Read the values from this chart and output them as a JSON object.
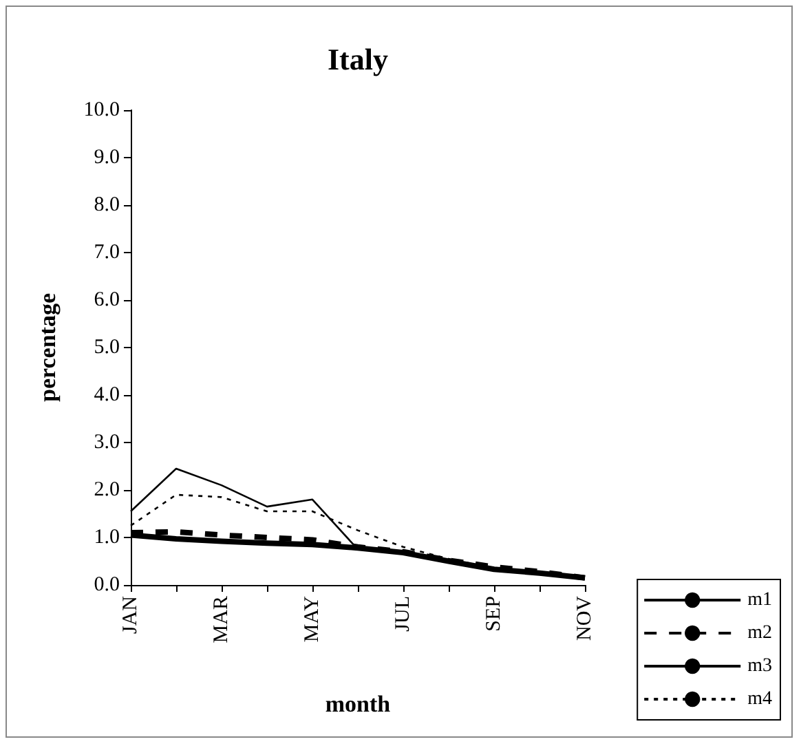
{
  "chart_data": {
    "type": "line",
    "title": "Italy",
    "xlabel": "month",
    "ylabel": "percentage",
    "categories": [
      "JAN",
      null,
      "MAR",
      null,
      "MAY",
      null,
      "JUL",
      null,
      "SEP",
      null,
      "NOV"
    ],
    "series": [
      {
        "name": "m1",
        "color": "#000000",
        "line_style": "solid",
        "values": [
          1.05,
          0.97,
          0.92,
          0.88,
          0.85,
          0.78,
          0.68,
          0.5,
          0.33,
          0.25,
          0.15
        ]
      },
      {
        "name": "m2",
        "color": "#000000",
        "line_style": "dashed",
        "values": [
          1.1,
          1.12,
          1.05,
          1.0,
          0.95,
          0.8,
          0.7,
          0.52,
          0.38,
          0.28,
          0.15
        ]
      },
      {
        "name": "m3",
        "color": "#000000",
        "line_style": "solid",
        "values": [
          1.55,
          2.45,
          2.1,
          1.65,
          1.8,
          0.75,
          0.7,
          0.5,
          0.35,
          0.25,
          0.12
        ]
      },
      {
        "name": "m4",
        "color": "#000000",
        "line_style": "dotted",
        "values": [
          1.25,
          1.9,
          1.85,
          1.55,
          1.55,
          1.15,
          0.8,
          0.55,
          0.35,
          0.25,
          0.15
        ]
      }
    ],
    "ylim": [
      0,
      10
    ],
    "yticks": [
      {
        "value": 0,
        "label": "0.0"
      },
      {
        "value": 1,
        "label": "1.0"
      },
      {
        "value": 2,
        "label": "2.0"
      },
      {
        "value": 3,
        "label": "3.0"
      },
      {
        "value": 4,
        "label": "4.0"
      },
      {
        "value": 5,
        "label": "5.0"
      },
      {
        "value": 6,
        "label": "6.0"
      },
      {
        "value": 7,
        "label": "7.0"
      },
      {
        "value": 8,
        "label": "8.0"
      },
      {
        "value": 9,
        "label": "9.0"
      },
      {
        "value": 10,
        "label": "10.0"
      }
    ],
    "grid": false,
    "legend": "bottom right",
    "marker": "none"
  }
}
